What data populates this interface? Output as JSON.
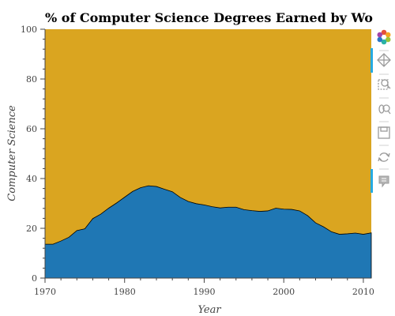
{
  "chart_data": {
    "type": "area",
    "title": "% of Computer Science Degrees Earned by Women",
    "xlabel": "Year",
    "ylabel": "Computer Science",
    "xlim": [
      1970,
      2011
    ],
    "ylim": [
      0,
      100
    ],
    "xticks": [
      1970,
      1980,
      1990,
      2000,
      2010
    ],
    "yticks": [
      0,
      20,
      40,
      60,
      80,
      100
    ],
    "x": [
      1970,
      1971,
      1972,
      1973,
      1974,
      1975,
      1976,
      1977,
      1978,
      1979,
      1980,
      1981,
      1982,
      1983,
      1984,
      1985,
      1986,
      1987,
      1988,
      1989,
      1990,
      1991,
      1992,
      1993,
      1994,
      1995,
      1996,
      1997,
      1998,
      1999,
      2000,
      2001,
      2002,
      2003,
      2004,
      2005,
      2006,
      2007,
      2008,
      2009,
      2010,
      2011
    ],
    "series": [
      {
        "color": "#1f77b4",
        "values": [
          13.6,
          13.6,
          14.9,
          16.4,
          19.1,
          19.8,
          23.9,
          25.7,
          28.1,
          30.2,
          32.5,
          34.8,
          36.3,
          37.1,
          36.8,
          35.7,
          34.7,
          32.4,
          30.8,
          29.9,
          29.4,
          28.7,
          28.2,
          28.5,
          28.5,
          27.5,
          27.1,
          26.8,
          27.0,
          28.1,
          27.7,
          27.6,
          27.0,
          25.1,
          22.2,
          20.6,
          18.6,
          17.6,
          17.8,
          18.1,
          17.6,
          18.2
        ]
      },
      {
        "color": "#daa520",
        "values": [
          100,
          100,
          100,
          100,
          100,
          100,
          100,
          100,
          100,
          100,
          100,
          100,
          100,
          100,
          100,
          100,
          100,
          100,
          100,
          100,
          100,
          100,
          100,
          100,
          100,
          100,
          100,
          100,
          100,
          100,
          100,
          100,
          100,
          100,
          100,
          100,
          100,
          100,
          100,
          100,
          100,
          100
        ]
      }
    ],
    "grid": false,
    "legend": false
  },
  "toolbar": {
    "tools": [
      "bokeh-logo-icon",
      "pan-icon",
      "box-zoom-icon",
      "wheel-zoom-icon",
      "save-icon",
      "reset-icon",
      "hover-icon"
    ]
  }
}
